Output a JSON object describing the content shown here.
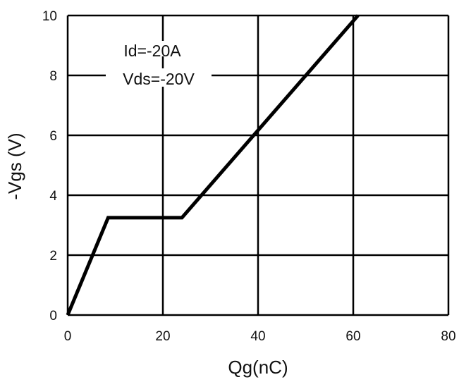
{
  "chart_data": {
    "type": "line",
    "title": "",
    "xlabel": "Qg(nC)",
    "ylabel": "-Vgs (V)",
    "xlim": [
      0,
      80
    ],
    "ylim": [
      0,
      10
    ],
    "x_ticks": [
      0,
      20,
      40,
      60,
      80
    ],
    "y_ticks": [
      0,
      2,
      4,
      6,
      8,
      10
    ],
    "grid": true,
    "annotations": [
      "Id=-20A",
      "Vds=-20V"
    ],
    "series": [
      {
        "x": [
          0,
          8.5,
          24,
          61
        ],
        "y": [
          0,
          3.25,
          3.25,
          10
        ]
      }
    ],
    "colors": {
      "line": "#000000",
      "grid": "#000000",
      "text": "#111111"
    }
  }
}
